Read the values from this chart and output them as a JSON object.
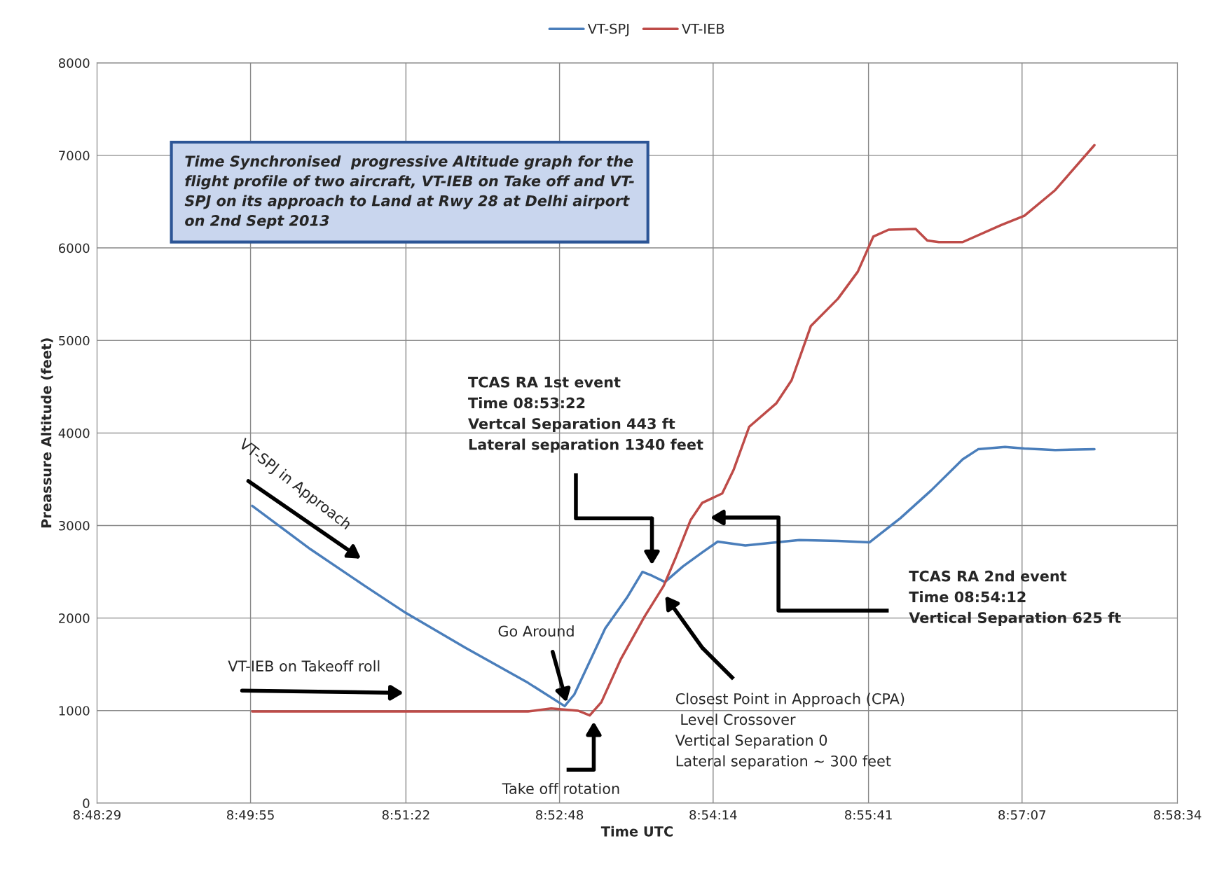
{
  "chart_data": {
    "type": "line",
    "title": "Time Synchronised  progressive Altitude graph for the\nflight profile of two aircraft, VT-IEB on Take off and VT-\nSPJ on its approach to Land at Rwy 28 at Delhi airport\non 2nd Sept 2013",
    "xlabel": "Time UTC",
    "ylabel": "Preassure Altitude (feet)",
    "series": [
      {
        "name": "VT-SPJ",
        "color": "#4a7ebb",
        "x": [
          8.8322,
          8.8413,
          8.8497,
          8.8561,
          8.8654,
          8.8751,
          8.8808,
          8.8823,
          8.8871,
          8.8905,
          8.8929,
          8.8944,
          8.8964,
          8.8992,
          8.9022,
          8.9046,
          8.9089,
          8.9137,
          8.9173,
          8.9233,
          8.9282,
          8.933,
          8.9378,
          8.9427,
          8.9451,
          8.9493,
          8.9523,
          8.9571,
          8.9632
        ],
        "values": [
          3212,
          2742,
          2348,
          2055,
          1677,
          1300,
          1048,
          1174,
          1887,
          2222,
          2499,
          2457,
          2390,
          2558,
          2709,
          2826,
          2784,
          2818,
          2843,
          2834,
          2818,
          3078,
          3379,
          3715,
          3824,
          3849,
          3832,
          3816,
          3824
        ]
      },
      {
        "name": "VT-IEB",
        "color": "#be4b48",
        "x": [
          8.8322,
          8.8533,
          8.8751,
          8.8787,
          8.8829,
          8.8847,
          8.8865,
          8.8895,
          8.8932,
          8.8962,
          8.898,
          8.9004,
          8.9022,
          8.9053,
          8.9071,
          8.9095,
          8.9137,
          8.9161,
          8.9191,
          8.9233,
          8.9264,
          8.9288,
          8.9312,
          8.9354,
          8.9372,
          8.939,
          8.9427,
          8.9487,
          8.9523,
          8.9571,
          8.9632
        ],
        "values": [
          990,
          990,
          990,
          1023,
          998,
          948,
          1090,
          1551,
          2013,
          2348,
          2642,
          3061,
          3245,
          3346,
          3606,
          4067,
          4319,
          4570,
          5157,
          5451,
          5744,
          6122,
          6197,
          6205,
          6080,
          6063,
          6063,
          6247,
          6348,
          6625,
          7111
        ]
      }
    ],
    "xlim": [
      8.80806,
      8.97611
    ],
    "xticks": [
      {
        "value": 8.80806,
        "label": "8:48:29"
      },
      {
        "value": 8.83194,
        "label": "8:49:55"
      },
      {
        "value": 8.85611,
        "label": "8:51:22"
      },
      {
        "value": 8.88,
        "label": "8:52:48"
      },
      {
        "value": 8.90389,
        "label": "8:54:14"
      },
      {
        "value": 8.92806,
        "label": "8:55:41"
      },
      {
        "value": 8.95194,
        "label": "8:57:07"
      },
      {
        "value": 8.97611,
        "label": "8:58:34"
      }
    ],
    "ylim": [
      0,
      8000
    ],
    "yticks": [
      0,
      1000,
      2000,
      3000,
      4000,
      5000,
      6000,
      7000,
      8000
    ],
    "grid": true,
    "legend": "top",
    "marker": "none",
    "line_style": "solid",
    "annotations": [
      "VT-SPJ in Approach",
      "VT-IEB on Takeoff roll",
      "Go Around",
      "Take off rotation",
      "TCAS RA 1st event\nTime 08:53:22\nVertcal Separation 443 ft\nLateral separation 1340 feet",
      "TCAS RA 2nd event\nTime 08:54:12\nVertical Separation 625 ft",
      "Closest Point in Approach (CPA)\n Level Crossover\nVertical Separation 0\nLateral separation ~ 300 feet"
    ]
  }
}
